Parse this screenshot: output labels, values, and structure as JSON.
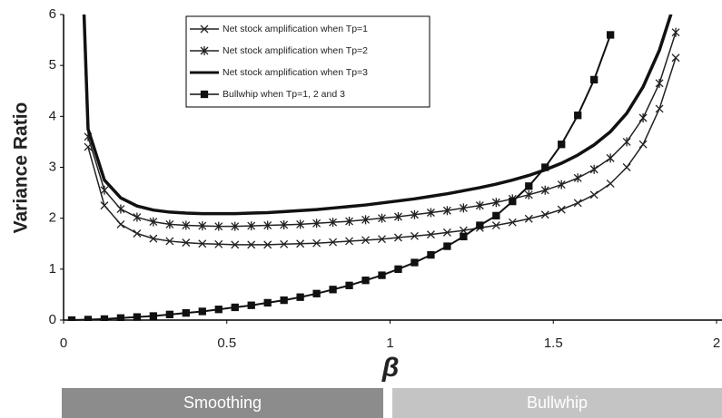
{
  "chart_data": {
    "type": "line",
    "x_label": "β",
    "y_label": "Variance Ratio",
    "xlim": [
      0,
      2
    ],
    "ylim": [
      0,
      6
    ],
    "xticks": [
      0,
      0.5,
      1,
      1.5,
      2
    ],
    "yticks": [
      0,
      1,
      2,
      3,
      4,
      5,
      6
    ],
    "regions": [
      "Smoothing",
      "Bullwhip"
    ],
    "region_colors": [
      "#8c8c8c",
      "#c4c4c4"
    ],
    "series": [
      {
        "name": "Net stock amplification when Tp=1",
        "color": "#222222",
        "marker": "x",
        "x": [
          0.075,
          0.125,
          0.175,
          0.225,
          0.275,
          0.325,
          0.375,
          0.425,
          0.475,
          0.525,
          0.575,
          0.625,
          0.675,
          0.725,
          0.775,
          0.825,
          0.875,
          0.925,
          0.975,
          1.025,
          1.075,
          1.125,
          1.175,
          1.225,
          1.275,
          1.325,
          1.375,
          1.425,
          1.475,
          1.525,
          1.575,
          1.625,
          1.675,
          1.725,
          1.775,
          1.825,
          1.875
        ],
        "values": [
          3.4,
          2.25,
          1.88,
          1.7,
          1.6,
          1.55,
          1.52,
          1.5,
          1.49,
          1.48,
          1.48,
          1.48,
          1.49,
          1.5,
          1.51,
          1.53,
          1.55,
          1.57,
          1.59,
          1.62,
          1.65,
          1.68,
          1.72,
          1.76,
          1.81,
          1.86,
          1.92,
          1.99,
          2.07,
          2.17,
          2.3,
          2.46,
          2.68,
          3.0,
          3.45,
          4.15,
          5.15
        ]
      },
      {
        "name": "Net stock amplification when Tp=2",
        "color": "#222222",
        "marker": "star",
        "x": [
          0.075,
          0.125,
          0.175,
          0.225,
          0.275,
          0.325,
          0.375,
          0.425,
          0.475,
          0.525,
          0.575,
          0.625,
          0.675,
          0.725,
          0.775,
          0.825,
          0.875,
          0.925,
          0.975,
          1.025,
          1.075,
          1.125,
          1.175,
          1.225,
          1.275,
          1.325,
          1.375,
          1.425,
          1.475,
          1.525,
          1.575,
          1.625,
          1.675,
          1.725,
          1.775,
          1.825,
          1.875
        ],
        "values": [
          3.6,
          2.55,
          2.18,
          2.02,
          1.93,
          1.88,
          1.86,
          1.85,
          1.84,
          1.84,
          1.85,
          1.86,
          1.87,
          1.88,
          1.9,
          1.92,
          1.94,
          1.97,
          2.0,
          2.03,
          2.07,
          2.11,
          2.15,
          2.2,
          2.25,
          2.31,
          2.38,
          2.46,
          2.55,
          2.66,
          2.79,
          2.96,
          3.18,
          3.5,
          3.97,
          4.65,
          5.65
        ]
      },
      {
        "name": "Net stock amplification when Tp=3",
        "color": "#111111",
        "marker": "none",
        "x": [
          0.06,
          0.075,
          0.125,
          0.175,
          0.225,
          0.275,
          0.325,
          0.375,
          0.425,
          0.475,
          0.525,
          0.575,
          0.625,
          0.675,
          0.725,
          0.775,
          0.825,
          0.875,
          0.925,
          0.975,
          1.025,
          1.075,
          1.125,
          1.175,
          1.225,
          1.275,
          1.325,
          1.375,
          1.425,
          1.475,
          1.525,
          1.575,
          1.625,
          1.675,
          1.725,
          1.775,
          1.825,
          1.875
        ],
        "values": [
          6.5,
          3.75,
          2.75,
          2.4,
          2.24,
          2.16,
          2.12,
          2.1,
          2.09,
          2.09,
          2.09,
          2.1,
          2.11,
          2.13,
          2.15,
          2.17,
          2.2,
          2.23,
          2.26,
          2.3,
          2.34,
          2.38,
          2.43,
          2.48,
          2.54,
          2.6,
          2.67,
          2.75,
          2.84,
          2.95,
          3.08,
          3.24,
          3.44,
          3.7,
          4.06,
          4.58,
          5.3,
          6.3
        ]
      },
      {
        "name": "Bullwhip when Tp=1, 2 and 3",
        "color": "#111111",
        "marker": "square",
        "x": [
          0.025,
          0.075,
          0.125,
          0.175,
          0.225,
          0.275,
          0.325,
          0.375,
          0.425,
          0.475,
          0.525,
          0.575,
          0.625,
          0.675,
          0.725,
          0.775,
          0.825,
          0.875,
          0.925,
          0.975,
          1.025,
          1.075,
          1.125,
          1.175,
          1.225,
          1.275,
          1.325,
          1.375,
          1.425,
          1.475,
          1.525,
          1.575,
          1.625,
          1.675
        ],
        "values": [
          0.0,
          0.01,
          0.02,
          0.04,
          0.06,
          0.08,
          0.11,
          0.14,
          0.17,
          0.21,
          0.25,
          0.29,
          0.34,
          0.39,
          0.45,
          0.52,
          0.6,
          0.68,
          0.78,
          0.88,
          1.0,
          1.13,
          1.28,
          1.45,
          1.64,
          1.86,
          2.05,
          2.33,
          2.63,
          3.0,
          3.45,
          4.02,
          4.72,
          5.6
        ]
      }
    ]
  }
}
